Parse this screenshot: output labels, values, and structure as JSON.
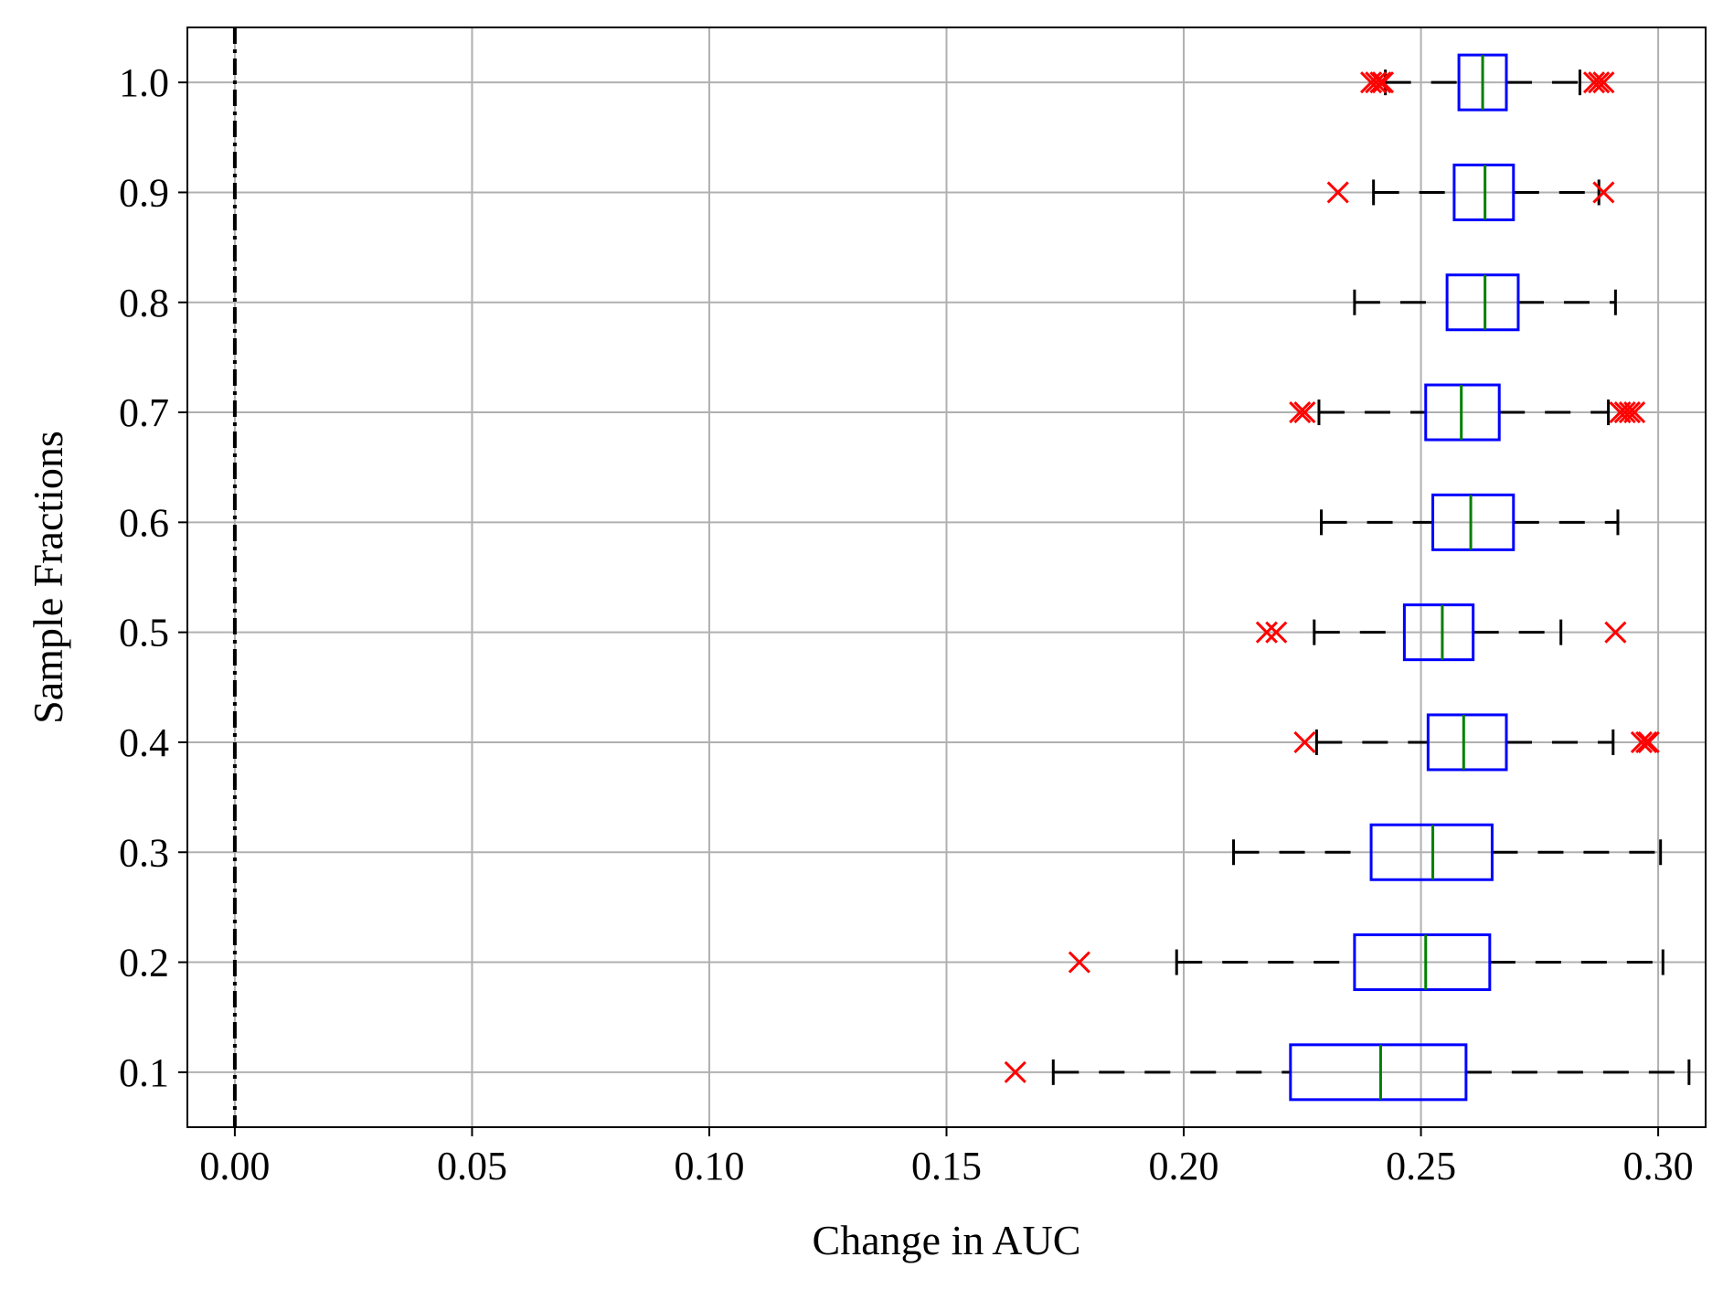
{
  "chart_data": {
    "type": "boxplot",
    "orientation": "horizontal",
    "xlabel": "Change in AUC",
    "ylabel": "Sample Fractions",
    "xlim": [
      -0.01,
      0.31
    ],
    "ylim": [
      0.05,
      1.05
    ],
    "x_ticks": [
      0.0,
      0.05,
      0.1,
      0.15,
      0.2,
      0.25,
      0.3
    ],
    "x_tick_labels": [
      "0.00",
      "0.05",
      "0.10",
      "0.15",
      "0.20",
      "0.25",
      "0.30"
    ],
    "y_tick_labels": [
      "0.1",
      "0.2",
      "0.3",
      "0.4",
      "0.5",
      "0.6",
      "0.7",
      "0.8",
      "0.9",
      "1.0"
    ],
    "grid": true,
    "reference_line": {
      "x": 0.0,
      "style": "dash-dot",
      "color": "#000000"
    },
    "colors": {
      "box": "#0000ff",
      "median": "#008000",
      "whisker": "#000000",
      "outlier": "#ff0000",
      "grid": "#b0b0b0"
    },
    "boxes": [
      {
        "label": "0.1",
        "whislo": 0.1725,
        "q1": 0.2225,
        "med": 0.2415,
        "q3": 0.2595,
        "whishi": 0.3065,
        "fliers": [
          0.1645
        ]
      },
      {
        "label": "0.2",
        "whislo": 0.1985,
        "q1": 0.236,
        "med": 0.251,
        "q3": 0.2645,
        "whishi": 0.301,
        "fliers": [
          0.178
        ]
      },
      {
        "label": "0.3",
        "whislo": 0.2105,
        "q1": 0.2395,
        "med": 0.2525,
        "q3": 0.265,
        "whishi": 0.3005,
        "fliers": []
      },
      {
        "label": "0.4",
        "whislo": 0.228,
        "q1": 0.2515,
        "med": 0.259,
        "q3": 0.268,
        "whishi": 0.2905,
        "fliers": [
          0.2255,
          0.2965,
          0.2975,
          0.298
        ]
      },
      {
        "label": "0.5",
        "whislo": 0.2275,
        "q1": 0.2465,
        "med": 0.2545,
        "q3": 0.261,
        "whishi": 0.2795,
        "fliers": [
          0.2175,
          0.2195,
          0.291
        ]
      },
      {
        "label": "0.6",
        "whislo": 0.229,
        "q1": 0.2525,
        "med": 0.2605,
        "q3": 0.2695,
        "whishi": 0.2915,
        "fliers": []
      },
      {
        "label": "0.7",
        "whislo": 0.2285,
        "q1": 0.251,
        "med": 0.2585,
        "q3": 0.2665,
        "whishi": 0.2895,
        "fliers": [
          0.2245,
          0.2255,
          0.292,
          0.293,
          0.294,
          0.295
        ]
      },
      {
        "label": "0.8",
        "whislo": 0.236,
        "q1": 0.2555,
        "med": 0.2635,
        "q3": 0.2705,
        "whishi": 0.291,
        "fliers": []
      },
      {
        "label": "0.9",
        "whislo": 0.24,
        "q1": 0.257,
        "med": 0.2635,
        "q3": 0.2695,
        "whishi": 0.2875,
        "fliers": [
          0.2325,
          0.2885
        ]
      },
      {
        "label": "1.0",
        "whislo": 0.2425,
        "q1": 0.258,
        "med": 0.263,
        "q3": 0.268,
        "whishi": 0.2835,
        "fliers": [
          0.2395,
          0.2405,
          0.2415,
          0.242,
          0.2865,
          0.2875,
          0.2885
        ]
      }
    ]
  }
}
